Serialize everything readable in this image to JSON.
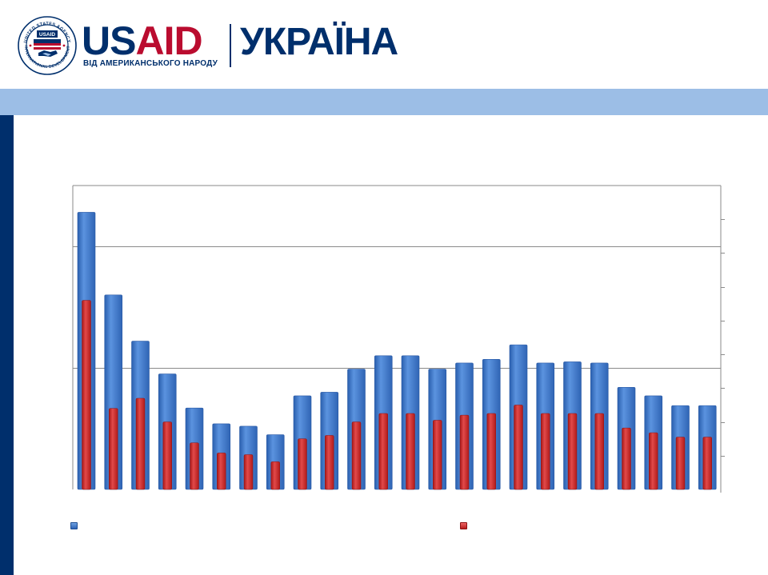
{
  "header": {
    "seal_ring_top": "UNITED STATES AGENCY",
    "seal_ring_bottom": "INTERNATIONAL DEVELOPMENT",
    "seal_center": "USAID",
    "brand_part1": "US",
    "brand_part2": "AID",
    "tagline": "ВІД АМЕРИКАНСЬКОГО НАРОДУ",
    "country": "УКРАЇНА"
  },
  "colors": {
    "navy": "#002f6c",
    "red": "#ba0c2f",
    "band": "#9cbee6",
    "bar_blue": "#3a74c8",
    "bar_red": "#d22d2d"
  },
  "chart_data": {
    "type": "bar",
    "grid": true,
    "legend": "bottom",
    "categories": [
      "",
      "",
      "",
      "",
      "",
      "",
      "",
      "",
      "",
      "",
      "",
      "",
      "",
      "",
      "",
      "",
      "",
      "",
      "",
      "",
      "",
      "",
      "",
      ""
    ],
    "y_left_range": [
      0,
      2.5
    ],
    "y_right_range": [
      0,
      9.0
    ],
    "y_left_gridlines": [
      1.0,
      2.0
    ],
    "y_right_ticks": [
      1,
      2,
      3,
      4,
      5,
      6,
      7,
      8
    ],
    "series": [
      {
        "axis": "left",
        "color": "blue",
        "values": [
          2.28,
          1.6,
          1.22,
          0.95,
          0.67,
          0.54,
          0.52,
          0.45,
          0.77,
          0.8,
          0.99,
          1.1,
          1.1,
          0.99,
          1.04,
          1.07,
          1.19,
          1.04,
          1.05,
          1.04,
          0.84,
          0.77,
          0.69,
          0.69
        ]
      },
      {
        "axis": "right",
        "color": "red",
        "values": [
          5.6,
          2.4,
          2.7,
          2.0,
          1.38,
          1.08,
          1.03,
          0.82,
          1.5,
          1.6,
          2.0,
          2.25,
          2.25,
          2.05,
          2.2,
          2.25,
          2.5,
          2.25,
          2.25,
          2.25,
          1.82,
          1.68,
          1.55,
          1.55
        ]
      }
    ]
  }
}
